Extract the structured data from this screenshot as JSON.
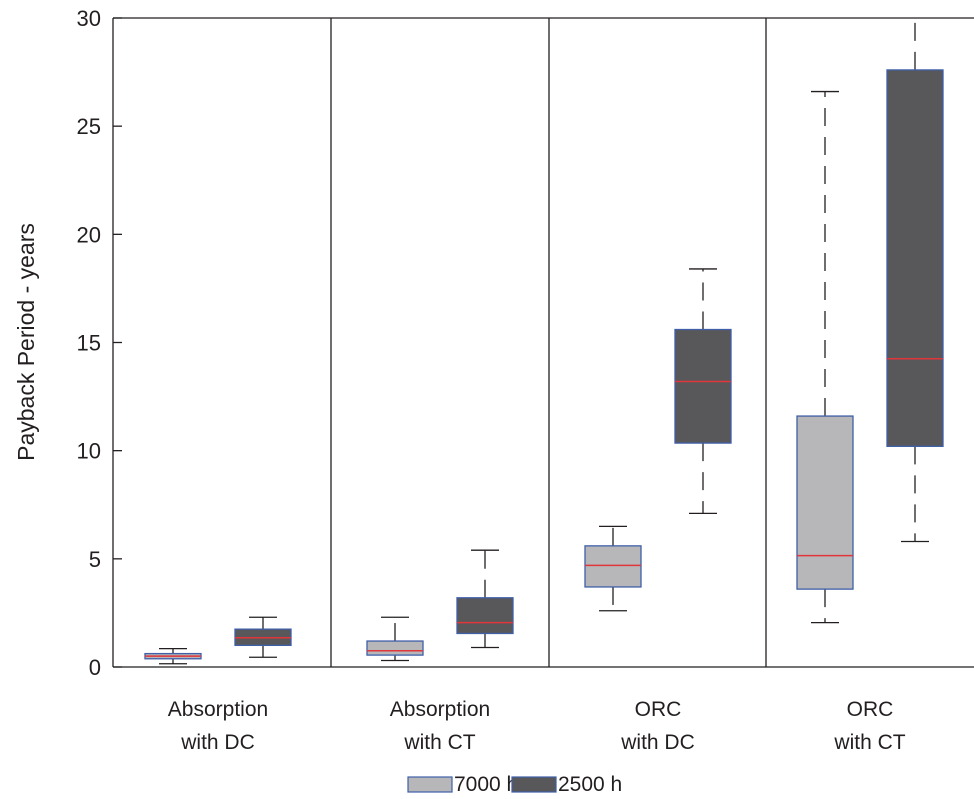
{
  "chart_data": {
    "type": "box",
    "ylabel": "Payback Period - years",
    "xlabel": "",
    "title": "",
    "ylim": [
      0,
      30
    ],
    "yticks": [
      0,
      5,
      10,
      15,
      20,
      25,
      30
    ],
    "grid": false,
    "groups": [
      {
        "label_line1": "Absorption",
        "label_line2": "with DC"
      },
      {
        "label_line1": "Absorption",
        "label_line2": "with CT"
      },
      {
        "label_line1": "ORC",
        "label_line2": "with DC"
      },
      {
        "label_line1": "ORC",
        "label_line2": "with CT"
      }
    ],
    "series": [
      {
        "name": "7000 h",
        "color": "#b7b7b9",
        "boxes": [
          {
            "whisker_low": 0.15,
            "q1": 0.38,
            "median": 0.5,
            "q3": 0.62,
            "whisker_high": 0.85
          },
          {
            "whisker_low": 0.3,
            "q1": 0.55,
            "median": 0.75,
            "q3": 1.2,
            "whisker_high": 2.3
          },
          {
            "whisker_low": 2.6,
            "q1": 3.7,
            "median": 4.7,
            "q3": 5.6,
            "whisker_high": 6.5
          },
          {
            "whisker_low": 2.05,
            "q1": 3.6,
            "median": 5.15,
            "q3": 11.6,
            "whisker_high": 26.6
          }
        ]
      },
      {
        "name": "2500 h",
        "color": "#58585a",
        "boxes": [
          {
            "whisker_low": 0.45,
            "q1": 1.0,
            "median": 1.35,
            "q3": 1.75,
            "whisker_high": 2.3
          },
          {
            "whisker_low": 0.9,
            "q1": 1.55,
            "median": 2.05,
            "q3": 3.2,
            "whisker_high": 5.4
          },
          {
            "whisker_low": 7.1,
            "q1": 10.35,
            "median": 13.2,
            "q3": 15.6,
            "whisker_high": 18.4
          },
          {
            "whisker_low": 5.8,
            "q1": 10.2,
            "median": 14.25,
            "q3": 27.6,
            "whisker_high": 30
          }
        ]
      }
    ],
    "colors": {
      "box_edge": "#3f5fa8",
      "median": "#e0353b",
      "whisker": "#231f20",
      "axis": "#231f20"
    },
    "legend": {
      "placement": "bottom-center"
    }
  }
}
